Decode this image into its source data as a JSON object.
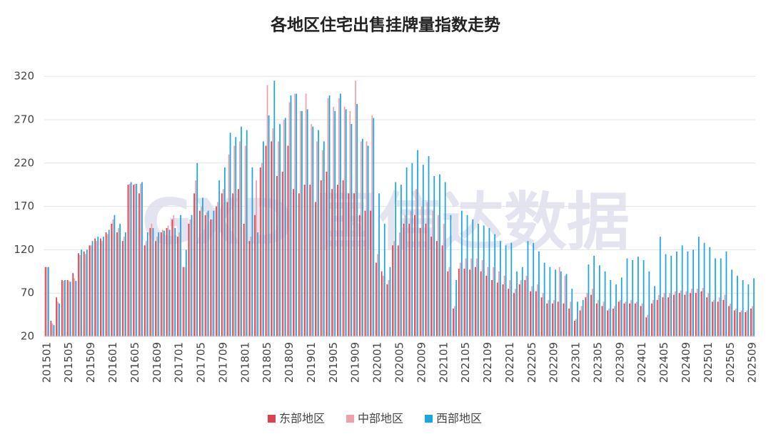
{
  "chart_data": {
    "type": "bar",
    "title": "各地区住宅出售挂牌量指数走势",
    "watermark": "GXD 国信达数据",
    "categories": [
      "201501",
      null,
      null,
      null,
      "201505",
      null,
      null,
      null,
      "201509",
      null,
      null,
      null,
      "201601",
      null,
      null,
      null,
      "201605",
      null,
      null,
      null,
      "201609",
      null,
      null,
      null,
      "201701",
      null,
      null,
      null,
      "201705",
      null,
      null,
      null,
      "201709",
      null,
      null,
      null,
      "201801",
      null,
      null,
      null,
      "201805",
      null,
      null,
      null,
      "201809",
      null,
      null,
      null,
      "201901",
      null,
      null,
      null,
      "201905",
      null,
      null,
      null,
      "201909",
      null,
      null,
      null,
      "202001",
      null,
      null,
      null,
      "202005",
      null,
      null,
      null,
      "202009",
      null,
      null,
      null,
      "202101",
      null,
      null,
      null,
      "202105",
      null,
      null,
      null,
      "202109",
      null,
      null,
      null,
      "202201",
      null,
      null,
      null,
      "202205",
      null,
      null,
      null,
      "202209",
      null,
      null,
      null,
      "202301",
      null,
      null,
      null,
      "202305",
      null,
      null,
      null,
      "202309",
      null,
      null,
      null,
      "202401",
      null,
      null,
      null,
      "202405",
      null,
      null,
      null,
      "202409",
      null,
      null,
      null,
      "202501",
      null,
      null,
      null,
      "202505",
      null,
      null,
      null,
      "202509"
    ],
    "series": [
      {
        "name": "东部地区",
        "color": "#d9434f",
        "values": [
          100,
          38,
          65,
          85,
          85,
          93,
          116,
          118,
          125,
          133,
          133,
          140,
          150,
          140,
          130,
          195,
          195,
          185,
          125,
          145,
          130,
          140,
          145,
          155,
          135,
          100,
          150,
          185,
          165,
          160,
          155,
          170,
          185,
          175,
          185,
          190,
          150,
          130,
          160,
          215,
          240,
          245,
          205,
          210,
          240,
          190,
          185,
          195,
          195,
          175,
          200,
          210,
          190,
          195,
          200,
          185,
          185,
          160,
          165,
          165,
          105,
          95,
          80,
          125,
          125,
          150,
          150,
          160,
          145,
          150,
          135,
          130,
          125,
          95,
          52,
          98,
          98,
          97,
          100,
          95,
          90,
          85,
          82,
          80,
          75,
          70,
          80,
          85,
          72,
          72,
          65,
          58,
          58,
          60,
          58,
          52,
          38,
          50,
          65,
          68,
          58,
          55,
          50,
          52,
          60,
          58,
          58,
          58,
          55,
          42,
          58,
          62,
          65,
          65,
          68,
          70,
          68,
          70,
          70,
          72,
          65,
          60,
          60,
          62,
          55,
          50,
          48,
          48,
          52
        ]
      },
      {
        "name": "中部地区",
        "color": "#f0a0a8",
        "values": [
          100,
          35,
          60,
          84,
          84,
          87,
          114,
          115,
          125,
          130,
          130,
          138,
          155,
          145,
          135,
          196,
          196,
          196,
          130,
          150,
          135,
          143,
          148,
          160,
          140,
          100,
          155,
          200,
          170,
          163,
          155,
          175,
          190,
          230,
          240,
          245,
          240,
          135,
          200,
          220,
          310,
          260,
          245,
          270,
          290,
          300,
          280,
          300,
          265,
          245,
          235,
          295,
          285,
          295,
          285,
          280,
          315,
          245,
          245,
          275,
          115,
          90,
          85,
          130,
          140,
          160,
          165,
          190,
          170,
          175,
          165,
          160,
          150,
          100,
          55,
          105,
          110,
          110,
          110,
          108,
          100,
          100,
          95,
          90,
          85,
          75,
          85,
          90,
          78,
          80,
          70,
          62,
          62,
          100,
          90,
          60,
          40,
          55,
          70,
          75,
          62,
          60,
          52,
          55,
          62,
          60,
          62,
          60,
          58,
          45,
          62,
          68,
          70,
          70,
          72,
          73,
          72,
          75,
          75,
          76,
          70,
          62,
          65,
          68,
          58,
          52,
          50,
          50,
          55
        ]
      },
      {
        "name": "西部地区",
        "color": "#1aa7e0",
        "values": [
          100,
          33,
          58,
          85,
          83,
          84,
          120,
          120,
          130,
          135,
          135,
          143,
          160,
          150,
          140,
          198,
          196,
          198,
          140,
          145,
          140,
          142,
          143,
          145,
          160,
          120,
          160,
          220,
          180,
          165,
          165,
          200,
          215,
          255,
          250,
          262,
          258,
          215,
          140,
          245,
          275,
          315,
          265,
          272,
          298,
          300,
          280,
          282,
          262,
          258,
          245,
          298,
          280,
          300,
          282,
          265,
          288,
          248,
          240,
          272,
          185,
          150,
          100,
          198,
          195,
          215,
          220,
          235,
          218,
          228,
          205,
          207,
          198,
          160,
          85,
          165,
          160,
          155,
          150,
          148,
          145,
          138,
          130,
          125,
          128,
          95,
          100,
          130,
          128,
          118,
          105,
          100,
          97,
          95,
          92,
          75,
          60,
          62,
          103,
          113,
          102,
          95,
          85,
          80,
          88,
          110,
          108,
          112,
          108,
          95,
          78,
          135,
          115,
          113,
          118,
          125,
          118,
          120,
          135,
          128,
          123,
          110,
          110,
          118,
          97,
          90,
          85,
          80,
          87
        ]
      }
    ],
    "ylim": [
      20,
      330
    ],
    "yticks": [
      20,
      70,
      120,
      170,
      220,
      270,
      320
    ],
    "grid": true,
    "legend": "bottom"
  }
}
